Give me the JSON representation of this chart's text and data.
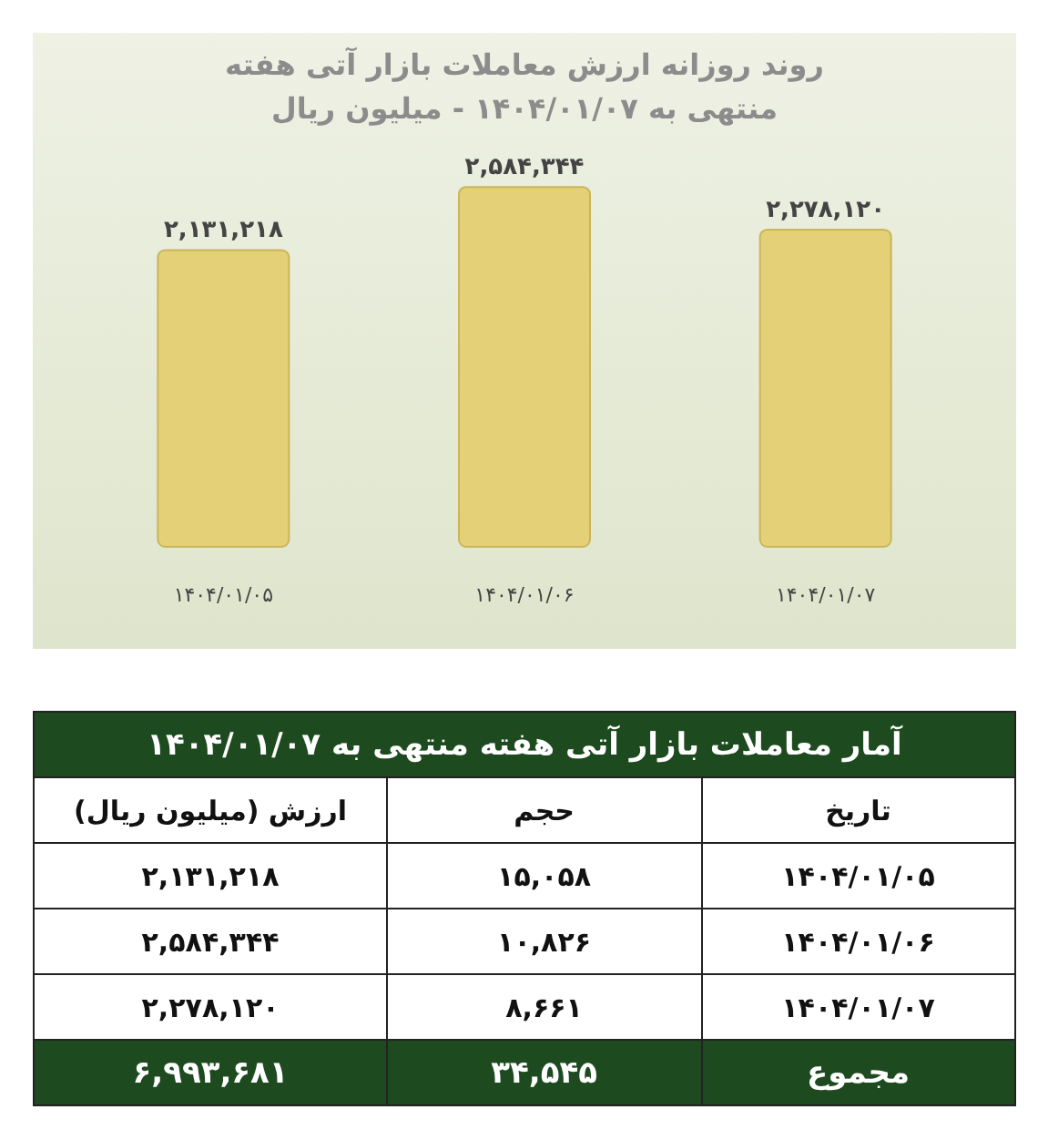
{
  "chart_data": [
    {
      "type": "bar",
      "title": "روند روزانه ارزش معاملات بازار آتی هفته منتهی به ۱۴۰۴/۰۱/۰۷ - میلیون ریال",
      "categories": [
        "۱۴۰۴/۰۱/۰۵",
        "۱۴۰۴/۰۱/۰۶",
        "۱۴۰۴/۰۱/۰۷"
      ],
      "values": [
        2131218,
        2584344,
        2278120
      ],
      "value_labels": [
        "۲,۱۳۱,۲۱۸",
        "۲,۵۸۴,۳۴۴",
        "۲,۲۷۸,۱۲۰"
      ],
      "color": "#e3d077",
      "tick_labels": "x"
    },
    {
      "type": "other",
      "title": "آمار معاملات بازار آتی هفته منتهی به ۱۴۰۴/۰۱/۰۷",
      "annotations": [
        "تاریخ",
        "حجم",
        "ارزش (میلیون ریال)",
        "۱۴۰۴/۰۱/۰۵",
        "۱۵,۰۵۸",
        "۲,۱۳۱,۲۱۸",
        "۱۴۰۴/۰۱/۰۶",
        "۱۰,۸۲۶",
        "۲,۵۸۴,۳۴۴",
        "۱۴۰۴/۰۱/۰۷",
        "۸,۶۶۱",
        "۲,۲۷۸,۱۲۰",
        "مجموع",
        "۳۴,۵۴۵",
        "۶,۹۹۳,۶۸۱"
      ]
    }
  ]
}
